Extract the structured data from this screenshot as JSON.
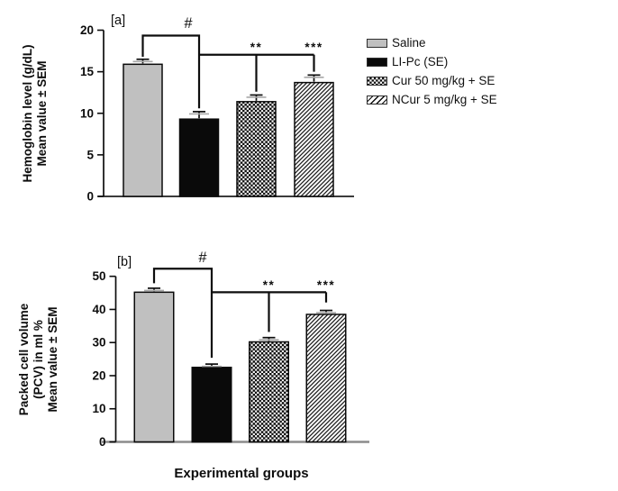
{
  "figure": {
    "xlabel": "Experimental groups",
    "background": "#ffffff",
    "ink_color": "#0d0d0d",
    "bar_gray": "#c0c0c0",
    "baseline_b_gray": "#8c8c8c"
  },
  "legend": {
    "items": [
      {
        "label": "Saline",
        "pattern": "solid-gray",
        "swatch_icon": "solid-gray-swatch"
      },
      {
        "label": "LI-Pc (SE)",
        "pattern": "solid-black",
        "swatch_icon": "solid-black-swatch"
      },
      {
        "label": "Cur 50 mg/kg + SE",
        "pattern": "checker",
        "swatch_icon": "checker-swatch"
      },
      {
        "label": "NCur 5 mg/kg + SE",
        "pattern": "diagonal",
        "swatch_icon": "diagonal-hatch-swatch"
      }
    ]
  },
  "chart_data": [
    {
      "id": "a",
      "type": "bar",
      "panel_label": "[a]",
      "ylabel_lines": [
        "Hemoglobin level (g/dL)",
        "Mean value ± SEM"
      ],
      "categories": [
        "Saline",
        "LI-Pc (SE)",
        "Cur 50 mg/kg + SE",
        "NCur 5 mg/kg + SE"
      ],
      "values": [
        15.9,
        9.3,
        11.4,
        13.7
      ],
      "sem": [
        0.6,
        0.9,
        0.8,
        0.9
      ],
      "ylim": [
        0,
        20
      ],
      "yticks": [
        0,
        5,
        10,
        15,
        20
      ],
      "grid": false,
      "bar_patterns": [
        "solid-gray",
        "solid-black",
        "checker",
        "diagonal"
      ],
      "annotations": [
        {
          "kind": "bracket",
          "label": "#",
          "bar_from": 0,
          "bar_to": 1,
          "y": 19.35,
          "drop_left_to": 16.8,
          "drop_right_to": 10.6
        },
        {
          "kind": "connector",
          "bar_from": 1,
          "bar_to": 3,
          "y": 17.05,
          "ticks": [
            {
              "bar": 2,
              "drop_to": 12.6,
              "label": "**"
            },
            {
              "bar": 3,
              "drop_to": 15.0,
              "label": "***"
            }
          ]
        }
      ]
    },
    {
      "id": "b",
      "type": "bar",
      "panel_label": "[b]",
      "ylabel_lines": [
        "Packed cell volume",
        "(PCV) in ml %",
        "Mean value ± SEM"
      ],
      "categories": [
        "Saline",
        "LI-Pc (SE)",
        "Cur 50 mg/kg + SE",
        "NCur 5 mg/kg + SE"
      ],
      "values": [
        45.2,
        22.5,
        30.2,
        38.5
      ],
      "sem": [
        1.2,
        1.0,
        1.3,
        1.2
      ],
      "ylim": [
        0,
        50
      ],
      "yticks": [
        0,
        10,
        20,
        30,
        40,
        50
      ],
      "grid": false,
      "bar_patterns": [
        "solid-gray",
        "solid-black",
        "checker",
        "diagonal"
      ],
      "xlabel": "Experimental groups",
      "annotations": [
        {
          "kind": "bracket",
          "label": "#",
          "bar_from": 0,
          "bar_to": 1,
          "y": 52.3,
          "drop_left_to": 47.9,
          "drop_right_to": 25.4
        },
        {
          "kind": "connector",
          "bar_from": 1,
          "bar_to": 3,
          "y": 45.2,
          "ticks": [
            {
              "bar": 2,
              "drop_to": 33.2,
              "label": "**"
            },
            {
              "bar": 3,
              "drop_to": 42.1,
              "label": "***"
            }
          ]
        }
      ]
    }
  ]
}
